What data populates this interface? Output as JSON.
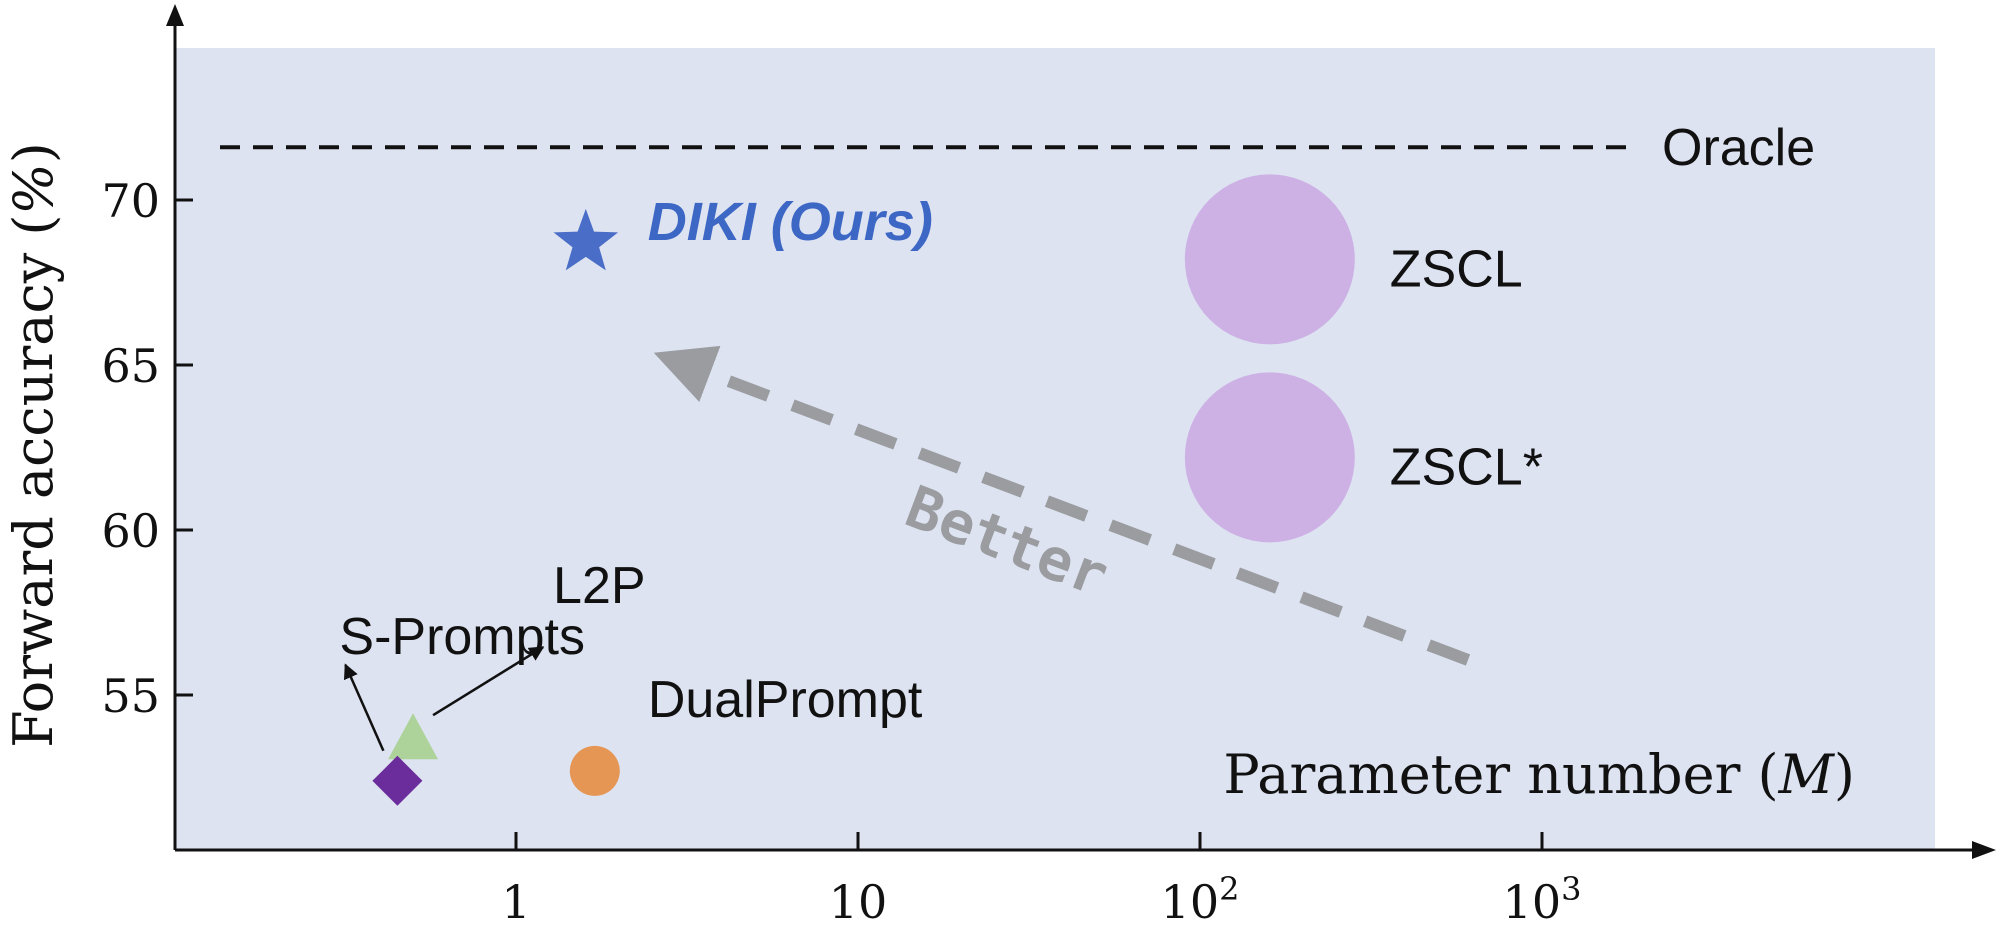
{
  "chart_data": {
    "type": "scatter",
    "xlabel": "Parameter number (M)",
    "ylabel": "Forward accuracy (%)",
    "x_scale": "log",
    "x_ticks": [
      {
        "value": 1,
        "base": "1",
        "exp": ""
      },
      {
        "value": 10,
        "base": "10",
        "exp": ""
      },
      {
        "value": 100,
        "base": "10",
        "exp": "2"
      },
      {
        "value": 1000,
        "base": "10",
        "exp": "3"
      }
    ],
    "y_ticks": [
      55,
      60,
      65,
      70
    ],
    "xlim": [
      0.1,
      10000
    ],
    "ylim": [
      50,
      75
    ],
    "grid": false,
    "background_color": "#dde3f1",
    "reference_line": {
      "label": "Oracle",
      "y": 71.6
    },
    "points": [
      {
        "name": "DIKI (Ours)",
        "x": 1.6,
        "y": 68.7,
        "marker": "star",
        "color": "#4a6ec7",
        "label_color": "#3d67c4"
      },
      {
        "name": "ZSCL",
        "x": 160,
        "y": 68.2,
        "marker": "circle-large",
        "color": "#cdb1e5"
      },
      {
        "name": "ZSCL*",
        "x": 160,
        "y": 62.2,
        "marker": "circle-large",
        "color": "#cdb1e5"
      },
      {
        "name": "L2P",
        "x": 0.5,
        "y": 53.6,
        "marker": "triangle",
        "color": "#aed39a"
      },
      {
        "name": "S-Prompts",
        "x": 0.45,
        "y": 52.4,
        "marker": "diamond",
        "color": "#6b2d9c"
      },
      {
        "name": "DualPrompt",
        "x": 1.7,
        "y": 52.7,
        "marker": "circle",
        "color": "#e69654"
      }
    ],
    "annotation": {
      "text": "Better",
      "direction": "toward upper-left",
      "color": "#9a9ca0"
    }
  }
}
